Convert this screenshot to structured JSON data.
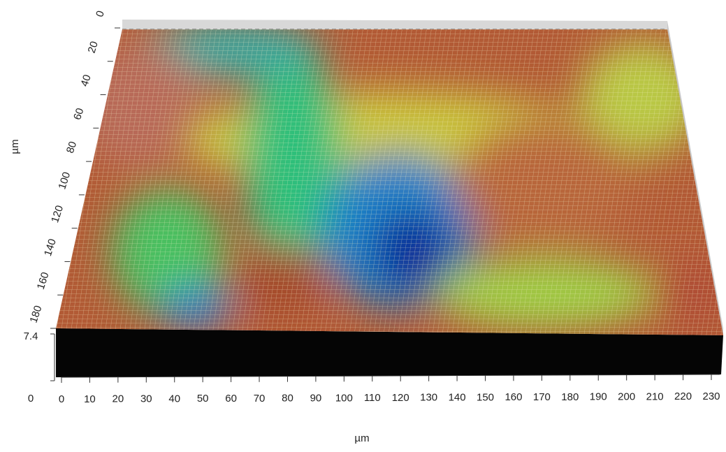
{
  "chart_data": {
    "type": "surface3d",
    "x_label": "µm",
    "y_label": "µm",
    "xlim": [
      0,
      230
    ],
    "xticks": [
      0,
      10,
      20,
      30,
      40,
      50,
      60,
      70,
      80,
      90,
      100,
      110,
      120,
      130,
      140,
      150,
      160,
      170,
      180,
      190,
      200,
      210,
      220,
      230
    ],
    "ylim": [
      0,
      180
    ],
    "yticks": [
      0,
      20,
      40,
      60,
      80,
      100,
      120,
      140,
      160,
      180
    ],
    "zlim": [
      0,
      7.4
    ],
    "zticks": [
      0,
      7.4
    ]
  }
}
